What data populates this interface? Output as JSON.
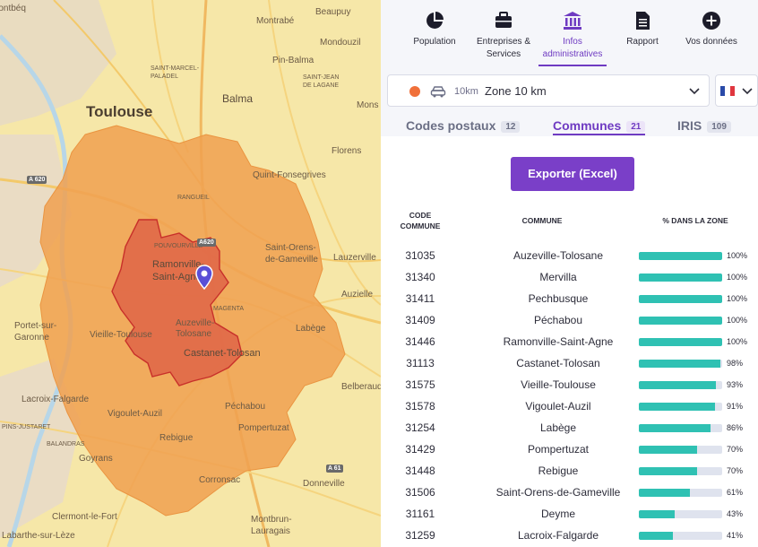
{
  "map": {
    "places": [
      {
        "id": "montbeq",
        "name": "Montbéq"
      },
      {
        "id": "beaupuy",
        "name": "Beaupuy"
      },
      {
        "id": "montrabe",
        "name": "Montrabé"
      },
      {
        "id": "mondouzil",
        "name": "Mondouzil"
      },
      {
        "id": "pin-balma",
        "name": "Pin-Balma"
      },
      {
        "id": "saint-marcel",
        "name": "SAINT-MARCEL-\nPALADEL"
      },
      {
        "id": "saint-jean",
        "name": "SAINT-JEAN\nDE LAGANE"
      },
      {
        "id": "balma",
        "name": "Balma"
      },
      {
        "id": "toulouse",
        "name": "Toulouse"
      },
      {
        "id": "mons",
        "name": "Mons"
      },
      {
        "id": "florens",
        "name": "Florens"
      },
      {
        "id": "quint",
        "name": "Quint-Fonsegrives"
      },
      {
        "id": "saint-orens",
        "name": "Saint-Orens-\nde-Gameville"
      },
      {
        "id": "lauzerville",
        "name": "Lauzerville"
      },
      {
        "id": "ramonville",
        "name": "Ramonville-\nSaint-Agne"
      },
      {
        "id": "auzielle",
        "name": "Auzielle"
      },
      {
        "id": "portet",
        "name": "Portet-sur-\nGaronne"
      },
      {
        "id": "vieille",
        "name": "Vieille-Toulouse"
      },
      {
        "id": "auzeville",
        "name": "Auzeville-\nTolosane"
      },
      {
        "id": "labege",
        "name": "Labège"
      },
      {
        "id": "castanet",
        "name": "Castanet-Tolosan"
      },
      {
        "id": "lacroix",
        "name": "Lacroix-Falgarde"
      },
      {
        "id": "vigoulet",
        "name": "Vigoulet-Auzil"
      },
      {
        "id": "pechabou",
        "name": "Péchabou"
      },
      {
        "id": "belberaud",
        "name": "Belberaud"
      },
      {
        "id": "rebigue",
        "name": "Rebigue"
      },
      {
        "id": "pompertuzat",
        "name": "Pompertuzat"
      },
      {
        "id": "goyrans",
        "name": "Goyrans"
      },
      {
        "id": "corronsac",
        "name": "Corronsac"
      },
      {
        "id": "donneville",
        "name": "Donneville"
      },
      {
        "id": "clermont",
        "name": "Clermont-le-Fort"
      },
      {
        "id": "labarthe",
        "name": "Labarthe-sur-Lèze"
      },
      {
        "id": "montbrun",
        "name": "Montbrun-\nLauragais"
      },
      {
        "id": "pins-justaret",
        "name": "PINS-JUSTARET"
      },
      {
        "id": "balandras",
        "name": "BALANDRAS"
      },
      {
        "id": "pouvourville",
        "name": "POUVOURVILLE"
      },
      {
        "id": "rangueil",
        "name": "RANGUEIL"
      },
      {
        "id": "magenta",
        "name": "MAGENTA"
      }
    ],
    "roads": [
      {
        "id": "a620",
        "name": "A 620"
      },
      {
        "id": "a620b",
        "name": "A620"
      },
      {
        "id": "a61",
        "name": "A 61"
      }
    ]
  },
  "nav": {
    "items": [
      {
        "label": "Population",
        "icon": "pie-chart-icon"
      },
      {
        "label": "Entreprises &\nServices",
        "icon": "briefcase-icon"
      },
      {
        "label": "Infos\nadministratives",
        "icon": "institution-icon"
      },
      {
        "label": "Rapport",
        "icon": "document-icon"
      },
      {
        "label": "Vos données",
        "icon": "plus-circle-icon"
      }
    ],
    "active_index": 2
  },
  "zone": {
    "km_label": "10km",
    "name": "Zone 10 km",
    "dot_color": "#f0703a"
  },
  "lang": {
    "flag": "fr"
  },
  "tabs": [
    {
      "label": "Codes postaux",
      "count": "12"
    },
    {
      "label": "Communes",
      "count": "21"
    },
    {
      "label": "IRIS",
      "count": "109"
    }
  ],
  "active_tab": 1,
  "export_label": "Exporter (Excel)",
  "table": {
    "headers": {
      "code": "CODE\nCOMMUNE",
      "commune": "COMMUNE",
      "pct": "% DANS LA ZONE"
    },
    "rows": [
      {
        "code": "31035",
        "name": "Auzeville-Tolosane",
        "pct": "100%",
        "value": 100
      },
      {
        "code": "31340",
        "name": "Mervilla",
        "pct": "100%",
        "value": 100
      },
      {
        "code": "31411",
        "name": "Pechbusque",
        "pct": "100%",
        "value": 100
      },
      {
        "code": "31409",
        "name": "Péchabou",
        "pct": "100%",
        "value": 100
      },
      {
        "code": "31446",
        "name": "Ramonville-Saint-Agne",
        "pct": "100%",
        "value": 100
      },
      {
        "code": "31113",
        "name": "Castanet-Tolosan",
        "pct": "98%",
        "value": 98
      },
      {
        "code": "31575",
        "name": "Vieille-Toulouse",
        "pct": "93%",
        "value": 93
      },
      {
        "code": "31578",
        "name": "Vigoulet-Auzil",
        "pct": "91%",
        "value": 91
      },
      {
        "code": "31254",
        "name": "Labège",
        "pct": "86%",
        "value": 86
      },
      {
        "code": "31429",
        "name": "Pompertuzat",
        "pct": "70%",
        "value": 70
      },
      {
        "code": "31448",
        "name": "Rebigue",
        "pct": "70%",
        "value": 70
      },
      {
        "code": "31506",
        "name": "Saint-Orens-de-Gameville",
        "pct": "61%",
        "value": 61
      },
      {
        "code": "31161",
        "name": "Deyme",
        "pct": "43%",
        "value": 43
      },
      {
        "code": "31259",
        "name": "Lacroix-Falgarde",
        "pct": "41%",
        "value": 41
      }
    ]
  },
  "colors": {
    "accent": "#6f3bc2",
    "button": "#7a3fc8",
    "bar_fill": "#2fc1b3",
    "bar_bg": "#dfe3ee",
    "zone_outer": "#f0a050",
    "zone_inner": "#e06848"
  }
}
